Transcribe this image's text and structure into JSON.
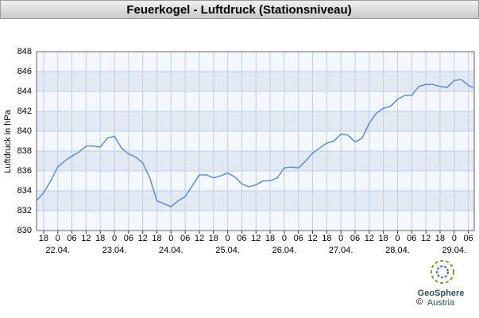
{
  "chart_data": {
    "type": "line",
    "title": "Feuerkogel - Luftdruck (Stationsniveau)",
    "y_label": "Luftdruck in hPa",
    "xlim": [
      -9,
      176.5
    ],
    "ylim": [
      830,
      848
    ],
    "yticks": [
      830,
      832,
      834,
      836,
      838,
      840,
      842,
      844,
      846,
      848
    ],
    "xticks": [
      {
        "value": -6,
        "label": "18"
      },
      0,
      {
        "value": 6,
        "label": "06"
      },
      12,
      18,
      {
        "value": 24,
        "label": "0"
      },
      {
        "value": 30,
        "label": "06"
      },
      {
        "value": 36,
        "label": "12"
      },
      {
        "value": 42,
        "label": "18"
      },
      {
        "value": 48,
        "label": "0"
      },
      {
        "value": 54,
        "label": "06"
      },
      {
        "value": 60,
        "label": "12"
      },
      {
        "value": 66,
        "label": "18"
      },
      {
        "value": 72,
        "label": "0"
      },
      {
        "value": 78,
        "label": "06"
      },
      {
        "value": 84,
        "label": "12"
      },
      {
        "value": 90,
        "label": "18"
      },
      {
        "value": 96,
        "label": "0"
      },
      {
        "value": 102,
        "label": "06"
      },
      {
        "value": 108,
        "label": "12"
      },
      {
        "value": 114,
        "label": "18"
      },
      {
        "value": 120,
        "label": "0"
      },
      {
        "value": 126,
        "label": "06"
      },
      {
        "value": 132,
        "label": "12"
      },
      {
        "value": 138,
        "label": "18"
      },
      {
        "value": 144,
        "label": "0"
      },
      {
        "value": 150,
        "label": "06"
      },
      {
        "value": 156,
        "label": "12"
      },
      {
        "value": 162,
        "label": "18"
      },
      {
        "value": 168,
        "label": "0"
      },
      {
        "value": 174,
        "label": "06"
      }
    ],
    "day_ticks": [
      {
        "value": 0,
        "label": "22.04."
      },
      {
        "value": 24,
        "label": "23.04."
      },
      {
        "value": 48,
        "label": "24.04."
      },
      {
        "value": 72,
        "label": "25.04."
      },
      {
        "value": 96,
        "label": "26.04."
      },
      {
        "value": 120,
        "label": "27.04."
      },
      {
        "value": 144,
        "label": "28.04."
      },
      {
        "value": 168,
        "label": "29.04."
      }
    ],
    "grid": true,
    "color": "#4a7fd6",
    "x": [
      -9,
      -6,
      -3,
      0,
      3,
      6,
      9,
      12,
      15,
      18,
      21,
      24,
      27,
      30,
      33,
      36,
      39,
      42,
      45,
      48,
      51,
      54,
      57,
      60,
      63,
      66,
      69,
      72,
      75,
      78,
      81,
      84,
      87,
      90,
      93,
      96,
      99,
      102,
      105,
      108,
      111,
      114,
      117,
      120,
      123,
      126,
      129,
      132,
      135,
      138,
      141,
      144,
      147,
      150,
      153,
      156,
      159,
      162,
      165,
      168,
      171,
      174,
      176
    ],
    "values": [
      833.0,
      833.8,
      835.0,
      836.4,
      837.0,
      837.5,
      837.9,
      838.5,
      838.5,
      838.4,
      839.3,
      839.5,
      838.3,
      837.7,
      837.4,
      836.8,
      835.3,
      833.0,
      832.7,
      832.4,
      833.0,
      833.4,
      834.5,
      835.6,
      835.6,
      835.3,
      835.5,
      835.8,
      835.4,
      834.7,
      834.4,
      834.6,
      835.0,
      835.0,
      835.3,
      836.3,
      836.4,
      836.3,
      837.0,
      837.8,
      838.3,
      838.8,
      839.0,
      839.7,
      839.6,
      838.9,
      839.3,
      840.8,
      841.8,
      842.3,
      842.5,
      843.2,
      843.6,
      843.6,
      844.5,
      844.7,
      844.7,
      844.5,
      844.4,
      845.1,
      845.2,
      844.6,
      844.4
    ]
  },
  "logo": {
    "copyright": "©",
    "name": "GeoSphere",
    "country": "Austria"
  }
}
